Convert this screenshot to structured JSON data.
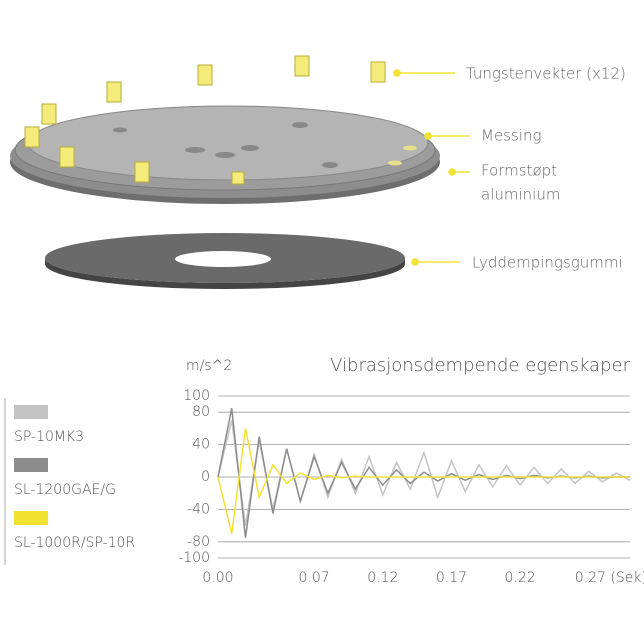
{
  "diagram": {
    "labels": [
      "Tungstenvekter (x12)",
      "Messing",
      "Formstøpt",
      "aluminium",
      "Lyddempingsgummi"
    ]
  },
  "chart_data": {
    "type": "line",
    "title": "Vibrasjonsdempende egenskaper",
    "y_label": "m/s^2",
    "x": [
      0,
      0.01,
      0.02,
      0.03,
      0.04,
      0.05,
      0.06,
      0.07,
      0.08,
      0.09,
      0.1,
      0.11,
      0.12,
      0.13,
      0.14,
      0.15,
      0.16,
      0.17,
      0.18,
      0.19,
      0.2,
      0.21,
      0.22,
      0.23,
      0.24,
      0.25,
      0.26,
      0.27,
      0.28,
      0.29,
      0.3
    ],
    "series": [
      {
        "name": "SP-10MK3",
        "color": "#c4c4c4",
        "values": [
          0,
          70,
          -60,
          45,
          -40,
          35,
          -30,
          28,
          -25,
          22,
          -20,
          25,
          -22,
          18,
          -15,
          30,
          -25,
          20,
          -18,
          15,
          -12,
          14,
          -10,
          12,
          -8,
          10,
          -8,
          7,
          -6,
          5,
          -4
        ]
      },
      {
        "name": "SL-1200GAE/G",
        "color": "#8c8c8c",
        "values": [
          0,
          85,
          -75,
          50,
          -45,
          35,
          -30,
          25,
          -20,
          18,
          -15,
          12,
          -10,
          9,
          -8,
          6,
          -5,
          4,
          -4,
          3,
          -3,
          2,
          -2,
          2,
          -1,
          1,
          -1,
          1,
          -1,
          0,
          0
        ]
      },
      {
        "name": "SL-1000R/SP-10R",
        "color": "#f2e232",
        "values": [
          0,
          -70,
          60,
          -25,
          15,
          -8,
          5,
          -3,
          2,
          -1,
          1,
          0,
          0,
          0,
          0,
          0,
          0,
          0,
          0,
          0,
          0,
          0,
          0,
          0,
          0,
          0,
          0,
          0,
          0,
          0,
          0
        ]
      }
    ],
    "xlim": [
      0,
      0.3
    ],
    "xticks": [
      {
        "value": 0,
        "label": "0.00"
      },
      0.07,
      0.12,
      0.17,
      0.22,
      {
        "value": 0.27,
        "label": "0.27 (Sek)"
      }
    ],
    "ylim": [
      -100,
      100
    ],
    "yticks": [
      100,
      80,
      40,
      0,
      -40,
      -80,
      -100
    ],
    "grid": true
  }
}
